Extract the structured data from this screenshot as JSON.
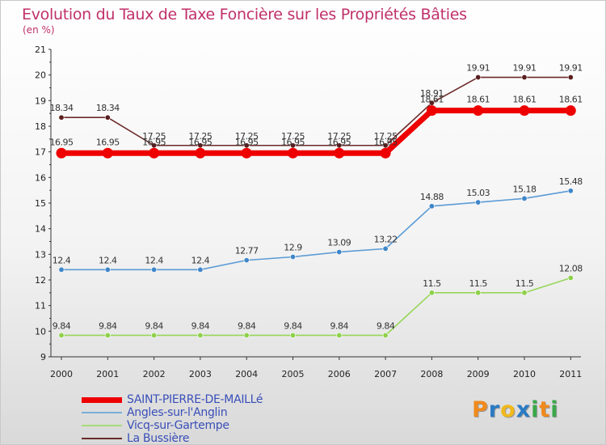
{
  "title": "Evolution du Taux de Taxe Foncière sur les Propriétés Bâties",
  "unit": "(en %)",
  "logo": {
    "letters": [
      "P",
      "r",
      "o",
      "x",
      "i",
      "t",
      "i"
    ],
    "colors": [
      "#f08a1c",
      "#2a7bc4",
      "#f0b81c",
      "#2a7bc4",
      "#3aa84a",
      "#f08a1c",
      "#3aa84a"
    ]
  },
  "chart_data": {
    "type": "line",
    "x": [
      2000,
      2001,
      2002,
      2003,
      2004,
      2005,
      2006,
      2007,
      2008,
      2009,
      2010,
      2011
    ],
    "ylim": [
      9,
      21
    ],
    "yticks": [
      9,
      10,
      11,
      12,
      13,
      14,
      15,
      16,
      17,
      18,
      19,
      20,
      21
    ],
    "grid": false,
    "legend_position": "bottom-left",
    "series": [
      {
        "name": "SAINT-PIERRE-DE-MAILLé",
        "color": "#ee0000",
        "values": [
          16.95,
          16.95,
          16.95,
          16.95,
          16.95,
          16.95,
          16.95,
          16.95,
          18.61,
          18.61,
          18.61,
          18.61
        ]
      },
      {
        "name": "Angles-sur-l'Anglin",
        "color": "#5b9bd5",
        "values": [
          12.4,
          12.4,
          12.4,
          12.4,
          12.77,
          12.9,
          13.09,
          13.22,
          14.88,
          15.03,
          15.18,
          15.48
        ]
      },
      {
        "name": "Vicq-sur-Gartempe",
        "color": "#98d65a",
        "values": [
          9.84,
          9.84,
          9.84,
          9.84,
          9.84,
          9.84,
          9.84,
          9.84,
          11.5,
          11.5,
          11.5,
          12.08
        ]
      },
      {
        "name": "La Bussière",
        "color": "#6b2a2a",
        "values": [
          18.34,
          18.34,
          17.25,
          17.25,
          17.25,
          17.25,
          17.25,
          17.25,
          18.91,
          19.91,
          19.91,
          19.91
        ]
      }
    ]
  }
}
